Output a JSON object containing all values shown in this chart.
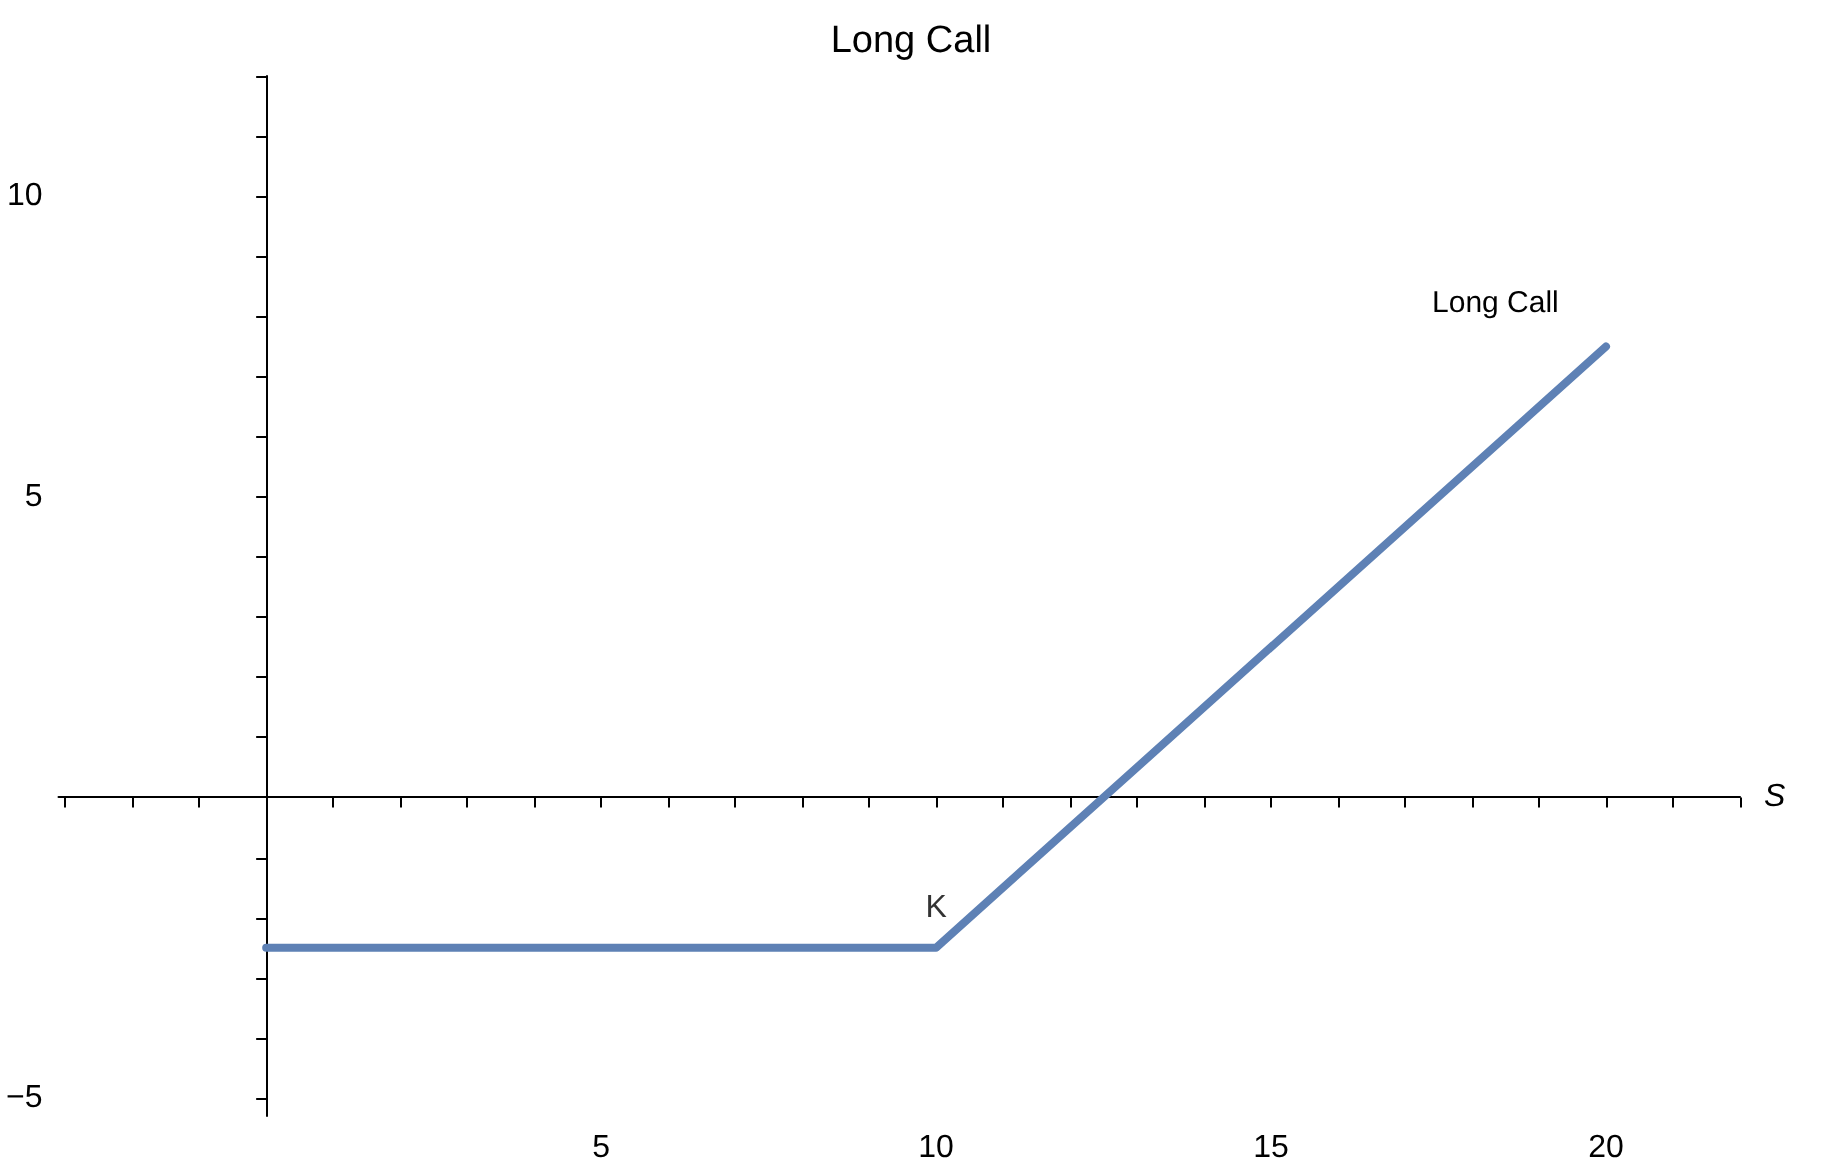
{
  "chart_data": {
    "type": "line",
    "title": "Long Call",
    "xlabel": "S",
    "x": [
      0,
      10,
      20
    ],
    "series": [
      {
        "name": "Long Call",
        "color": "#5e81b5",
        "values": [
          -2.5,
          -2.5,
          7.5
        ]
      }
    ],
    "annotations": [
      {
        "text": "K",
        "x": 10,
        "y": -2.5
      }
    ],
    "xlim": [
      -3.1,
      22
    ],
    "ylim": [
      -5.3,
      12
    ],
    "xticks": [
      {
        "value": -3,
        "label": null
      },
      {
        "value": -2,
        "label": null
      },
      {
        "value": -1,
        "label": null
      },
      {
        "value": 1,
        "label": null
      },
      {
        "value": 2,
        "label": null
      },
      {
        "value": 3,
        "label": null
      },
      {
        "value": 4,
        "label": null
      },
      5,
      {
        "value": 6,
        "label": null
      },
      {
        "value": 7,
        "label": null
      },
      {
        "value": 8,
        "label": null
      },
      {
        "value": 9,
        "label": null
      },
      10,
      {
        "value": 11,
        "label": null
      },
      {
        "value": 12,
        "label": null
      },
      {
        "value": 13,
        "label": null
      },
      {
        "value": 14,
        "label": null
      },
      15,
      {
        "value": 16,
        "label": null
      },
      {
        "value": 17,
        "label": null
      },
      {
        "value": 18,
        "label": null
      },
      {
        "value": 19,
        "label": null
      },
      20,
      {
        "value": 21,
        "label": null
      },
      {
        "value": 22,
        "label": null
      }
    ],
    "yticks": [
      -5,
      {
        "value": -4,
        "label": null
      },
      {
        "value": -3,
        "label": null
      },
      {
        "value": -2,
        "label": null
      },
      {
        "value": -1,
        "label": null
      },
      {
        "value": 1,
        "label": null
      },
      {
        "value": 2,
        "label": null
      },
      {
        "value": 3,
        "label": null
      },
      {
        "value": 4,
        "label": null
      },
      5,
      {
        "value": 6,
        "label": null
      },
      {
        "value": 7,
        "label": null
      },
      {
        "value": 8,
        "label": null
      },
      {
        "value": 9,
        "label": null
      },
      10,
      {
        "value": 11,
        "label": null
      },
      {
        "value": 12,
        "label": null
      }
    ],
    "grid": false,
    "legend": false,
    "marker": "none",
    "line_style": "solid"
  }
}
